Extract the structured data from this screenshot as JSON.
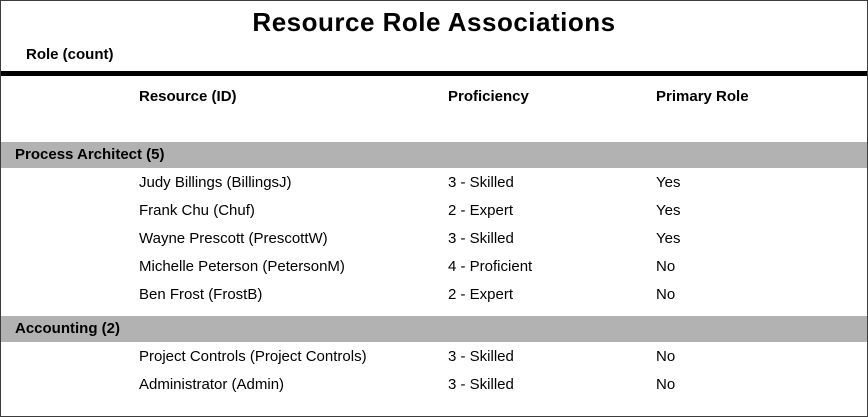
{
  "report": {
    "title": "Resource Role Associations",
    "group_label": "Role (count)",
    "columns": {
      "resource": "Resource (ID)",
      "proficiency": "Proficiency",
      "primary_role": "Primary Role"
    },
    "colors": {
      "group_bar": "#b2b2b2",
      "rule": "#000000",
      "text": "#000000",
      "background": "#ffffff"
    }
  },
  "groups": [
    {
      "name": "Process Architect (5)",
      "rows": [
        {
          "resource": "Judy Billings (BillingsJ)",
          "proficiency": "3 - Skilled",
          "primary_role": "Yes"
        },
        {
          "resource": "Frank Chu (Chuf)",
          "proficiency": "2 - Expert",
          "primary_role": "Yes"
        },
        {
          "resource": "Wayne Prescott (PrescottW)",
          "proficiency": "3 - Skilled",
          "primary_role": "Yes"
        },
        {
          "resource": "Michelle Peterson (PetersonM)",
          "proficiency": "4 - Proficient",
          "primary_role": "No"
        },
        {
          "resource": "Ben Frost (FrostB)",
          "proficiency": "2 - Expert",
          "primary_role": "No"
        }
      ]
    },
    {
      "name": "Accounting (2)",
      "rows": [
        {
          "resource": "Project Controls (Project Controls)",
          "proficiency": "3 - Skilled",
          "primary_role": "No"
        },
        {
          "resource": "Administrator (Admin)",
          "proficiency": "3 - Skilled",
          "primary_role": "No"
        }
      ]
    }
  ]
}
